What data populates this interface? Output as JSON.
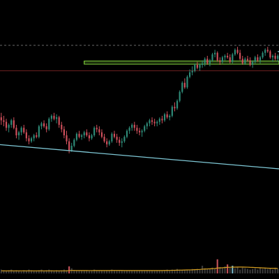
{
  "chart_data": {
    "type": "candlestick",
    "title": "",
    "xlabel": "",
    "ylabel": "",
    "grid": false,
    "ylim": [
      0,
      100
    ],
    "volume_ylim": [
      0,
      100
    ],
    "colors": {
      "background": "#000000",
      "up": "#2e8b78",
      "down": "#d0505c",
      "volume": "#3a3a3a",
      "volume_highlight": "#7ab8c8",
      "volume_down_highlight": "#c05058",
      "volume_ma": "#d8a020",
      "trendline": "#7fc8d6",
      "zone": "#7ccc3a",
      "dashed_level": "#6a6a6a",
      "red_level": "#6a1f1f"
    },
    "candles": [
      [
        52,
        55,
        47,
        50
      ],
      [
        50,
        53,
        46,
        49
      ],
      [
        49,
        51,
        43,
        45
      ],
      [
        45,
        48,
        42,
        47
      ],
      [
        47,
        51,
        45,
        50
      ],
      [
        50,
        52,
        44,
        45
      ],
      [
        45,
        47,
        38,
        40
      ],
      [
        40,
        43,
        37,
        42
      ],
      [
        42,
        46,
        40,
        45
      ],
      [
        45,
        47,
        41,
        42
      ],
      [
        42,
        44,
        36,
        38
      ],
      [
        38,
        40,
        34,
        36
      ],
      [
        36,
        39,
        35,
        38
      ],
      [
        38,
        41,
        36,
        40
      ],
      [
        40,
        42,
        38,
        39
      ],
      [
        39,
        47,
        38,
        46
      ],
      [
        46,
        49,
        44,
        48
      ],
      [
        48,
        50,
        45,
        46
      ],
      [
        46,
        48,
        42,
        44
      ],
      [
        44,
        52,
        43,
        51
      ],
      [
        51,
        54,
        49,
        53
      ],
      [
        53,
        55,
        50,
        51
      ],
      [
        51,
        54,
        48,
        52
      ],
      [
        52,
        53,
        45,
        47
      ],
      [
        47,
        49,
        42,
        44
      ],
      [
        44,
        46,
        38,
        40
      ],
      [
        40,
        43,
        34,
        36
      ],
      [
        36,
        38,
        28,
        30
      ],
      [
        30,
        35,
        29,
        33
      ],
      [
        33,
        38,
        32,
        37
      ],
      [
        37,
        42,
        36,
        41
      ],
      [
        41,
        43,
        38,
        39
      ],
      [
        39,
        41,
        37,
        40
      ],
      [
        40,
        43,
        38,
        42
      ],
      [
        42,
        44,
        39,
        40
      ],
      [
        40,
        42,
        36,
        38
      ],
      [
        38,
        41,
        37,
        40
      ],
      [
        40,
        46,
        39,
        45
      ],
      [
        45,
        47,
        42,
        44
      ],
      [
        44,
        46,
        40,
        42
      ],
      [
        42,
        44,
        38,
        39
      ],
      [
        39,
        41,
        35,
        36
      ],
      [
        36,
        38,
        32,
        34
      ],
      [
        34,
        37,
        33,
        36
      ],
      [
        36,
        42,
        35,
        41
      ],
      [
        41,
        43,
        38,
        39
      ],
      [
        39,
        41,
        35,
        37
      ],
      [
        37,
        39,
        33,
        35
      ],
      [
        35,
        38,
        32,
        36
      ],
      [
        36,
        40,
        35,
        39
      ],
      [
        39,
        44,
        38,
        43
      ],
      [
        43,
        46,
        41,
        45
      ],
      [
        45,
        48,
        43,
        47
      ],
      [
        47,
        49,
        43,
        45
      ],
      [
        45,
        47,
        41,
        43
      ],
      [
        43,
        45,
        40,
        42
      ],
      [
        42,
        44,
        39,
        43
      ],
      [
        43,
        47,
        42,
        46
      ],
      [
        46,
        49,
        44,
        48
      ],
      [
        48,
        51,
        46,
        50
      ],
      [
        50,
        52,
        47,
        49
      ],
      [
        49,
        51,
        46,
        48
      ],
      [
        48,
        50,
        46,
        49
      ],
      [
        49,
        52,
        47,
        51
      ],
      [
        51,
        53,
        48,
        50
      ],
      [
        50,
        55,
        49,
        54
      ],
      [
        54,
        56,
        51,
        52
      ],
      [
        52,
        54,
        50,
        53
      ],
      [
        53,
        60,
        52,
        59
      ],
      [
        59,
        62,
        56,
        58
      ],
      [
        58,
        64,
        57,
        63
      ],
      [
        63,
        70,
        62,
        69
      ],
      [
        69,
        76,
        68,
        75
      ],
      [
        75,
        78,
        71,
        72
      ],
      [
        72,
        80,
        71,
        79
      ],
      [
        79,
        84,
        78,
        82
      ],
      [
        82,
        86,
        80,
        83
      ],
      [
        83,
        88,
        82,
        87
      ],
      [
        87,
        89,
        84,
        85
      ],
      [
        85,
        88,
        83,
        87
      ],
      [
        87,
        90,
        85,
        88
      ],
      [
        88,
        92,
        86,
        91
      ],
      [
        91,
        93,
        87,
        88
      ],
      [
        88,
        91,
        86,
        90
      ],
      [
        90,
        95,
        89,
        94
      ],
      [
        94,
        97,
        92,
        95
      ],
      [
        95,
        96,
        89,
        90
      ],
      [
        90,
        92,
        87,
        89
      ],
      [
        89,
        93,
        88,
        92
      ],
      [
        92,
        94,
        90,
        93
      ],
      [
        93,
        95,
        91,
        92
      ],
      [
        92,
        94,
        88,
        89
      ],
      [
        89,
        95,
        88,
        94
      ],
      [
        94,
        98,
        93,
        97
      ],
      [
        97,
        99,
        94,
        95
      ],
      [
        95,
        97,
        90,
        91
      ],
      [
        91,
        93,
        87,
        88
      ],
      [
        88,
        92,
        87,
        91
      ],
      [
        91,
        93,
        89,
        90
      ],
      [
        90,
        92,
        86,
        87
      ],
      [
        87,
        90,
        85,
        89
      ],
      [
        89,
        93,
        88,
        92
      ],
      [
        92,
        94,
        89,
        90
      ],
      [
        90,
        93,
        88,
        92
      ],
      [
        92,
        96,
        91,
        95
      ],
      [
        95,
        98,
        93,
        97
      ],
      [
        97,
        99,
        95,
        96
      ],
      [
        96,
        97,
        91,
        92
      ],
      [
        92,
        94,
        89,
        93
      ],
      [
        93,
        95,
        90,
        91
      ],
      [
        91,
        94,
        89,
        93
      ]
    ],
    "volumes": [
      6,
      5,
      4,
      5,
      6,
      4,
      5,
      4,
      3,
      5,
      4,
      6,
      5,
      4,
      4,
      5,
      6,
      4,
      5,
      6,
      5,
      4,
      5,
      4,
      5,
      6,
      5,
      11,
      8,
      5,
      4,
      5,
      4,
      4,
      5,
      4,
      5,
      6,
      4,
      4,
      5,
      4,
      5,
      4,
      6,
      5,
      4,
      5,
      5,
      4,
      4,
      5,
      4,
      5,
      4,
      5,
      4,
      4,
      5,
      4,
      5,
      4,
      5,
      4,
      5,
      5,
      6,
      5,
      6,
      5,
      7,
      6,
      5,
      6,
      5,
      6,
      7,
      6,
      7,
      6,
      12,
      8,
      7,
      7,
      9,
      8,
      22,
      10,
      8,
      11,
      14,
      9,
      12,
      8,
      10,
      6,
      9,
      8,
      7,
      6,
      7,
      8,
      6,
      9,
      7,
      8,
      7,
      8,
      6,
      9,
      7
    ],
    "volume_highlights": [
      27,
      86,
      90,
      92
    ],
    "volume_ma": [
      4,
      4,
      4,
      4,
      4,
      4,
      4,
      4,
      4,
      4,
      4,
      4,
      4,
      4,
      4,
      4,
      4,
      4,
      4,
      4,
      4,
      4,
      4,
      4,
      4,
      4,
      4,
      4.4,
      4.6,
      4.6,
      4.5,
      4.5,
      4.5,
      4.5,
      4.5,
      4.4,
      4.4,
      4.5,
      4.5,
      4.5,
      4.5,
      4.5,
      4.5,
      4.5,
      4.6,
      4.6,
      4.6,
      4.6,
      4.6,
      4.5,
      4.5,
      4.5,
      4.5,
      4.5,
      4.5,
      4.5,
      4.5,
      4.5,
      4.5,
      4.5,
      4.5,
      4.5,
      4.5,
      4.5,
      4.5,
      4.6,
      4.6,
      4.7,
      4.8,
      4.9,
      5,
      5.1,
      5.2,
      5.3,
      5.4,
      5.5,
      5.6,
      5.8,
      6,
      6.2,
      6.6,
      6.8,
      7,
      7.2,
      7.5,
      7.7,
      8.4,
      8.6,
      8.8,
      9.1,
      9.5,
      9.6,
      9.8,
      9.8,
      9.9,
      9.9,
      9.9,
      9.8,
      9.7,
      9.5,
      9.4,
      9.2,
      9,
      8.8,
      8.6,
      8.4,
      8.2,
      8,
      8,
      7.9,
      7.8
    ],
    "trendlines": [
      {
        "name": "",
        "x1": -2,
        "y1": 34,
        "x2": 115,
        "y2": 17,
        "color": "trendline"
      },
      {
        "name": "",
        "x1": 110,
        "y1": 96,
        "x2": 116,
        "y2": 93,
        "color": "trendline"
      }
    ],
    "zones": [
      {
        "x_start": 33,
        "x_end": 116,
        "y_low": 87.5,
        "y_high": 89.5
      }
    ],
    "levels": [
      {
        "y": 100,
        "style": "dashed",
        "color": "dashed_level"
      },
      {
        "y": 83,
        "style": "solid",
        "color": "red_level"
      }
    ]
  }
}
